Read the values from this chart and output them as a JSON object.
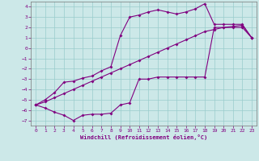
{
  "xlabel": "Windchill (Refroidissement éolien,°C)",
  "bg_color": "#cce8e8",
  "line_color": "#800080",
  "grid_color": "#99cccc",
  "xlim": [
    -0.5,
    23.5
  ],
  "ylim": [
    -7.5,
    4.5
  ],
  "xticks": [
    0,
    1,
    2,
    3,
    4,
    5,
    6,
    7,
    8,
    9,
    10,
    11,
    12,
    13,
    14,
    15,
    16,
    17,
    18,
    19,
    20,
    21,
    22,
    23
  ],
  "yticks": [
    -7,
    -6,
    -5,
    -4,
    -3,
    -2,
    -1,
    0,
    1,
    2,
    3,
    4
  ],
  "line_upper_x": [
    0,
    1,
    2,
    3,
    4,
    5,
    6,
    7,
    8,
    9,
    10,
    11,
    12,
    13,
    14,
    15,
    16,
    17,
    18,
    19,
    20,
    21,
    22,
    23
  ],
  "line_upper_y": [
    -5.5,
    -5.0,
    -4.3,
    -3.3,
    -3.2,
    -2.9,
    -2.7,
    -2.2,
    -1.8,
    1.2,
    3.0,
    3.2,
    3.5,
    3.7,
    3.5,
    3.3,
    3.5,
    3.8,
    4.3,
    2.3,
    2.3,
    2.3,
    2.3,
    1.0
  ],
  "line_lower_x": [
    0,
    1,
    2,
    3,
    4,
    5,
    6,
    7,
    8,
    9,
    10,
    11,
    12,
    13,
    14,
    15,
    16,
    17,
    18,
    19,
    20,
    21,
    22,
    23
  ],
  "line_lower_y": [
    -5.5,
    -5.8,
    -6.2,
    -6.5,
    -7.0,
    -6.5,
    -6.4,
    -6.4,
    -6.3,
    -5.5,
    -5.3,
    -3.0,
    -3.0,
    -2.8,
    -2.8,
    -2.8,
    -2.8,
    -2.8,
    -2.8,
    2.0,
    2.0,
    2.0,
    2.0,
    1.0
  ],
  "line_mid_x": [
    0,
    1,
    2,
    3,
    4,
    5,
    6,
    7,
    8,
    9,
    10,
    11,
    12,
    13,
    14,
    15,
    16,
    17,
    18,
    19,
    20,
    21,
    22,
    23
  ],
  "line_mid_y": [
    -5.5,
    -5.2,
    -4.8,
    -4.4,
    -4.0,
    -3.6,
    -3.2,
    -2.8,
    -2.4,
    -2.0,
    -1.6,
    -1.2,
    -0.8,
    -0.4,
    0.0,
    0.4,
    0.8,
    1.2,
    1.6,
    1.8,
    2.0,
    2.1,
    2.2,
    1.0
  ]
}
